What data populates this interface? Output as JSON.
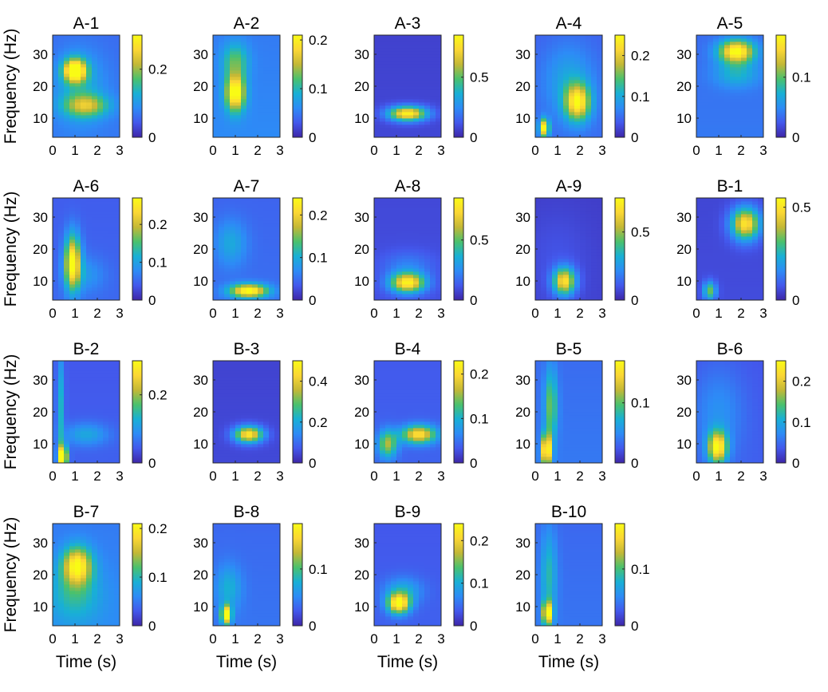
{
  "chart_data": {
    "type": "heatmap",
    "ylabel": "Frequency (Hz)",
    "xlabel": "Time (s)",
    "x_ticks": [
      "0",
      "1",
      "2",
      "3"
    ],
    "y_ticks": [
      "10",
      "20",
      "30"
    ],
    "xlim": [
      0,
      3
    ],
    "ylim": [
      4,
      36
    ],
    "colormap": "parula",
    "colormap_stops": [
      "#3e26a8",
      "#4358ec",
      "#2d8bf6",
      "#18b0d5",
      "#4ac16d",
      "#c4b836",
      "#fbd734",
      "#f9fb15"
    ],
    "panels": [
      {
        "title": "A-1",
        "cbar_ticks": [
          "0",
          "0.2"
        ],
        "cbar_values": [
          0,
          0.2
        ],
        "cmax": 0.3,
        "background": 0.07,
        "blobs": [
          {
            "t": 1.0,
            "f": 25,
            "st": 0.35,
            "sf": 2.5,
            "a": 0.28
          },
          {
            "t": 1.5,
            "f": 14,
            "st": 0.7,
            "sf": 2.5,
            "a": 0.14
          },
          {
            "t": 1.2,
            "f": 20,
            "st": 0.8,
            "sf": 8,
            "a": 0.06
          }
        ]
      },
      {
        "title": "A-2",
        "cbar_ticks": [
          "0",
          "0.1",
          "0.2"
        ],
        "cbar_values": [
          0,
          0.1,
          0.2
        ],
        "cmax": 0.21,
        "background": 0.06,
        "blobs": [
          {
            "t": 1.0,
            "f": 18,
            "st": 0.3,
            "sf": 4,
            "a": 0.17
          },
          {
            "t": 1.0,
            "f": 28,
            "st": 0.4,
            "sf": 4,
            "a": 0.07
          }
        ]
      },
      {
        "title": "A-3",
        "cbar_ticks": [
          "0",
          "0.5"
        ],
        "cbar_values": [
          0,
          0.5
        ],
        "cmax": 0.85,
        "background": 0.08,
        "blobs": [
          {
            "t": 1.5,
            "f": 11.5,
            "st": 0.6,
            "sf": 1.6,
            "a": 0.75
          }
        ]
      },
      {
        "title": "A-4",
        "cbar_ticks": [
          "0",
          "0.1",
          "0.2"
        ],
        "cbar_values": [
          0,
          0.1,
          0.2
        ],
        "cmax": 0.25,
        "background": 0.05,
        "blobs": [
          {
            "t": 1.9,
            "f": 15,
            "st": 0.4,
            "sf": 4,
            "a": 0.18
          },
          {
            "t": 0.4,
            "f": 7,
            "st": 0.15,
            "sf": 2,
            "a": 0.2
          },
          {
            "t": 1.5,
            "f": 22,
            "st": 0.8,
            "sf": 8,
            "a": 0.05
          }
        ]
      },
      {
        "title": "A-5",
        "cbar_ticks": [
          "0",
          "0.1"
        ],
        "cbar_values": [
          0,
          0.1
        ],
        "cmax": 0.17,
        "background": 0.04,
        "blobs": [
          {
            "t": 1.8,
            "f": 31,
            "st": 0.55,
            "sf": 2.5,
            "a": 0.14
          },
          {
            "t": 1.8,
            "f": 24,
            "st": 0.7,
            "sf": 3,
            "a": 0.04
          }
        ]
      },
      {
        "title": "A-6",
        "cbar_ticks": [
          "0",
          "0.1",
          "0.2"
        ],
        "cbar_values": [
          0,
          0.1,
          0.2
        ],
        "cmax": 0.27,
        "background": 0.05,
        "blobs": [
          {
            "t": 0.9,
            "f": 16,
            "st": 0.25,
            "sf": 6,
            "a": 0.22
          },
          {
            "t": 1.5,
            "f": 12,
            "st": 0.6,
            "sf": 4,
            "a": 0.04
          }
        ]
      },
      {
        "title": "A-7",
        "cbar_ticks": [
          "0",
          "0.1",
          "0.2"
        ],
        "cbar_values": [
          0,
          0.1,
          0.2
        ],
        "cmax": 0.24,
        "background": 0.05,
        "blobs": [
          {
            "t": 1.6,
            "f": 7,
            "st": 0.6,
            "sf": 1.5,
            "a": 0.2
          },
          {
            "t": 0.8,
            "f": 22,
            "st": 0.5,
            "sf": 5,
            "a": 0.05
          }
        ]
      },
      {
        "title": "A-8",
        "cbar_ticks": [
          "0",
          "0.5"
        ],
        "cbar_values": [
          0,
          0.5
        ],
        "cmax": 0.85,
        "background": 0.1,
        "blobs": [
          {
            "t": 1.5,
            "f": 9.5,
            "st": 0.55,
            "sf": 2.2,
            "a": 0.72
          },
          {
            "t": 1.5,
            "f": 15,
            "st": 0.8,
            "sf": 3,
            "a": 0.12
          }
        ]
      },
      {
        "title": "A-9",
        "cbar_ticks": [
          "0",
          "0.5"
        ],
        "cbar_values": [
          0,
          0.5
        ],
        "cmax": 0.75,
        "background": 0.06,
        "blobs": [
          {
            "t": 1.3,
            "f": 10,
            "st": 0.35,
            "sf": 3,
            "a": 0.6
          },
          {
            "t": 1.0,
            "f": 18,
            "st": 1.0,
            "sf": 10,
            "a": 0.04
          }
        ]
      },
      {
        "title": "B-1",
        "cbar_ticks": [
          "0",
          "0.5"
        ],
        "cbar_values": [
          0,
          0.5
        ],
        "cmax": 0.55,
        "background": 0.06,
        "blobs": [
          {
            "t": 2.2,
            "f": 28,
            "st": 0.45,
            "sf": 3.5,
            "a": 0.45
          },
          {
            "t": 0.6,
            "f": 7,
            "st": 0.2,
            "sf": 2,
            "a": 0.28
          }
        ]
      },
      {
        "title": "B-2",
        "cbar_ticks": [
          "0",
          "0.2"
        ],
        "cbar_values": [
          0,
          0.2
        ],
        "cmax": 0.3,
        "background": 0.05,
        "blobs": [
          {
            "t": 0.45,
            "f": 6,
            "st": 0.15,
            "sf": 2.5,
            "a": 0.28
          },
          {
            "t": 0.35,
            "f": 22,
            "st": 0.12,
            "sf": 12,
            "a": 0.09
          },
          {
            "t": 1.5,
            "f": 13,
            "st": 0.7,
            "sf": 2.5,
            "a": 0.07
          }
        ]
      },
      {
        "title": "B-3",
        "cbar_ticks": [
          "0",
          "0.2",
          "0.4"
        ],
        "cbar_values": [
          0,
          0.2,
          0.4
        ],
        "cmax": 0.5,
        "background": 0.05,
        "blobs": [
          {
            "t": 1.6,
            "f": 13,
            "st": 0.45,
            "sf": 1.8,
            "a": 0.42
          }
        ]
      },
      {
        "title": "B-4",
        "cbar_ticks": [
          "0",
          "0.1",
          "0.2"
        ],
        "cbar_values": [
          0,
          0.1,
          0.2
        ],
        "cmax": 0.23,
        "background": 0.04,
        "blobs": [
          {
            "t": 2.0,
            "f": 13,
            "st": 0.55,
            "sf": 2,
            "a": 0.17
          },
          {
            "t": 0.6,
            "f": 10,
            "st": 0.3,
            "sf": 3,
            "a": 0.12
          }
        ]
      },
      {
        "title": "B-5",
        "cbar_ticks": [
          "0",
          "0.1"
        ],
        "cbar_values": [
          0,
          0.1
        ],
        "cmax": 0.17,
        "background": 0.04,
        "blobs": [
          {
            "t": 0.5,
            "f": 8,
            "st": 0.15,
            "sf": 3.5,
            "a": 0.15
          },
          {
            "t": 0.7,
            "f": 22,
            "st": 0.2,
            "sf": 8,
            "a": 0.07
          }
        ]
      },
      {
        "title": "B-6",
        "cbar_ticks": [
          "0",
          "0.1",
          "0.2"
        ],
        "cbar_values": [
          0,
          0.1,
          0.2
        ],
        "cmax": 0.25,
        "background": 0.04,
        "blobs": [
          {
            "t": 0.95,
            "f": 9,
            "st": 0.3,
            "sf": 3.5,
            "a": 0.2
          },
          {
            "t": 1.0,
            "f": 20,
            "st": 0.8,
            "sf": 10,
            "a": 0.04
          }
        ]
      },
      {
        "title": "B-7",
        "cbar_ticks": [
          "0",
          "0.1",
          "0.2"
        ],
        "cbar_values": [
          0,
          0.1,
          0.2
        ],
        "cmax": 0.21,
        "background": 0.06,
        "blobs": [
          {
            "t": 1.1,
            "f": 23,
            "st": 0.45,
            "sf": 4,
            "a": 0.15
          },
          {
            "t": 1.0,
            "f": 14,
            "st": 0.8,
            "sf": 6,
            "a": 0.05
          }
        ]
      },
      {
        "title": "B-8",
        "cbar_ticks": [
          "0",
          "0.1"
        ],
        "cbar_values": [
          0,
          0.1
        ],
        "cmax": 0.18,
        "background": 0.04,
        "blobs": [
          {
            "t": 0.6,
            "f": 7.5,
            "st": 0.15,
            "sf": 2,
            "a": 0.16
          },
          {
            "t": 0.7,
            "f": 16,
            "st": 0.4,
            "sf": 5,
            "a": 0.04
          }
        ]
      },
      {
        "title": "B-9",
        "cbar_ticks": [
          "0",
          "0.1",
          "0.2"
        ],
        "cbar_values": [
          0,
          0.1,
          0.2
        ],
        "cmax": 0.24,
        "background": 0.04,
        "blobs": [
          {
            "t": 1.1,
            "f": 11,
            "st": 0.35,
            "sf": 2.2,
            "a": 0.2
          },
          {
            "t": 1.3,
            "f": 15,
            "st": 0.6,
            "sf": 3,
            "a": 0.06
          }
        ]
      },
      {
        "title": "B-10",
        "cbar_ticks": [
          "0",
          "0.1"
        ],
        "cbar_values": [
          0,
          0.1
        ],
        "cmax": 0.18,
        "background": 0.04,
        "blobs": [
          {
            "t": 0.55,
            "f": 8,
            "st": 0.15,
            "sf": 2.5,
            "a": 0.14
          },
          {
            "t": 0.6,
            "f": 20,
            "st": 0.25,
            "sf": 10,
            "a": 0.05
          }
        ]
      }
    ]
  }
}
